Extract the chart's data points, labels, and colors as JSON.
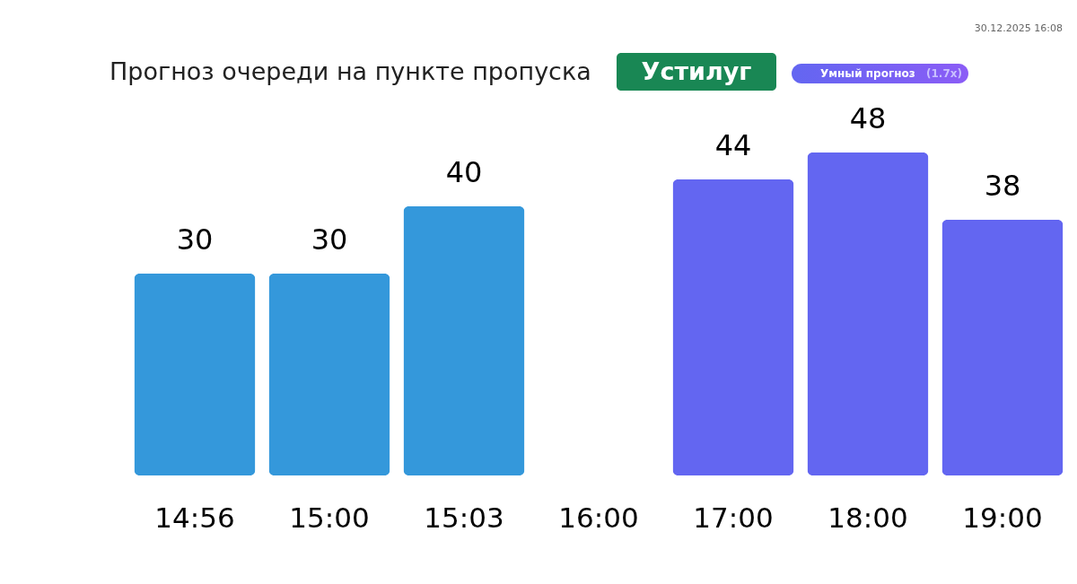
{
  "chart_data": {
    "type": "bar",
    "title": "Прогноз очереди на пункте пропуска",
    "subtitle": "Устилуг",
    "annotations": [
      "Умный прогноз",
      "(1.7x)",
      "30.12.2025 16:08"
    ],
    "categories": [
      "14:56",
      "15:00",
      "15:03",
      "16:00",
      "17:00",
      "18:00",
      "19:00"
    ],
    "values": [
      30,
      30,
      40,
      null,
      44,
      48,
      38
    ],
    "colors": [
      "#3498db",
      "#3498db",
      "#3498db",
      null,
      "#6366f1",
      "#6366f1",
      "#6366f1"
    ],
    "data_labels": true,
    "tick_labels": "x"
  }
}
